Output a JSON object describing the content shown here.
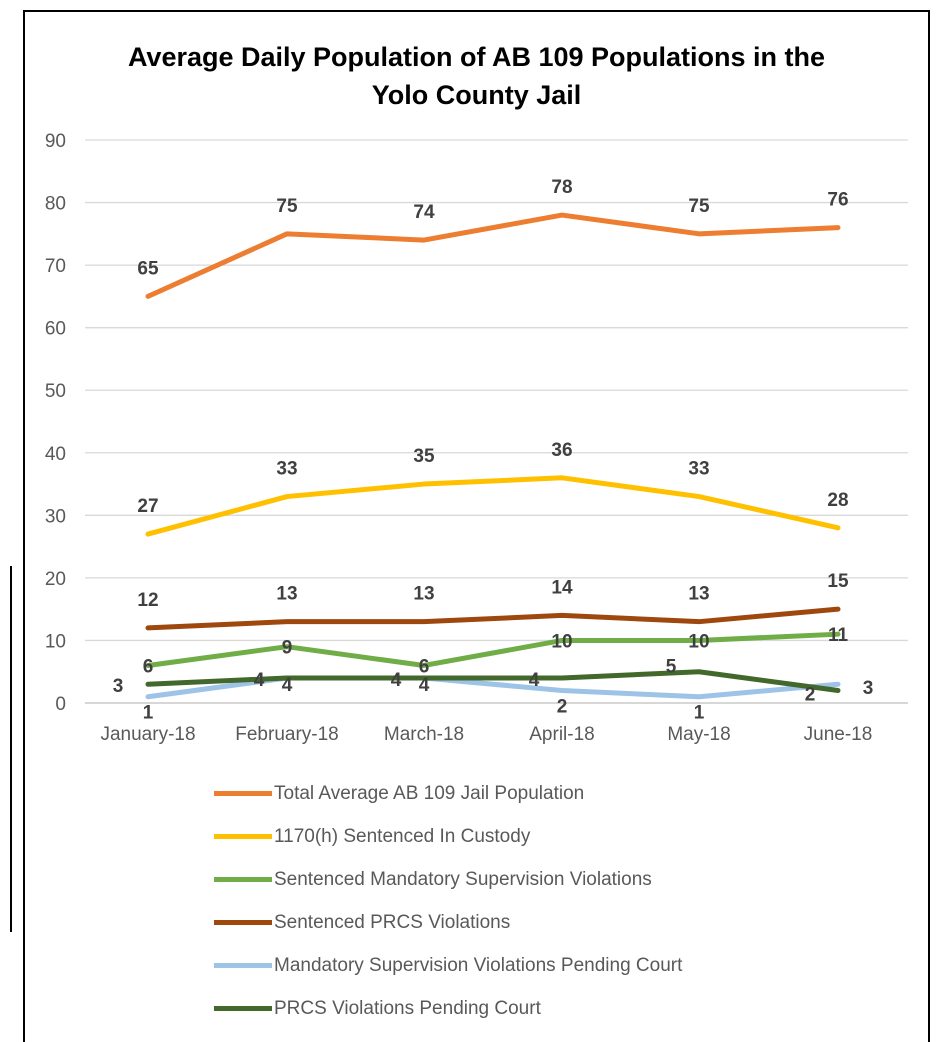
{
  "chart_data": {
    "type": "line",
    "title_lines": [
      "Average Daily Population of AB 109 Populations in the",
      "Yolo County Jail"
    ],
    "categories": [
      "January-18",
      "February-18",
      "March-18",
      "April-18",
      "May-18",
      "June-18"
    ],
    "y_ticks": [
      "0",
      "10",
      "20",
      "30",
      "40",
      "50",
      "60",
      "70",
      "80",
      "90"
    ],
    "ylim": [
      0,
      90
    ],
    "grid": "horizontal",
    "legend_position": "bottom",
    "series": [
      {
        "name": "Total Average AB 109 Jail Population",
        "color": "#ED7D31",
        "values": [
          65,
          75,
          74,
          78,
          75,
          76
        ]
      },
      {
        "name": "1170(h) Sentenced In Custody",
        "color": "#FFC000",
        "values": [
          27,
          33,
          35,
          36,
          33,
          28
        ]
      },
      {
        "name": "Sentenced Mandatory Supervision Violations",
        "color": "#70AD47",
        "values": [
          6,
          9,
          6,
          10,
          10,
          11
        ]
      },
      {
        "name": "Sentenced PRCS Violations",
        "color": "#9E480E",
        "values": [
          12,
          13,
          13,
          14,
          13,
          15
        ]
      },
      {
        "name": "Mandatory Supervision Violations Pending Court",
        "color": "#9DC3E6",
        "values": [
          1,
          4,
          4,
          2,
          1,
          3
        ]
      },
      {
        "name": "PRCS Violations Pending Court",
        "color": "#43682B",
        "values": [
          3,
          4,
          4,
          4,
          5,
          2
        ]
      }
    ]
  }
}
